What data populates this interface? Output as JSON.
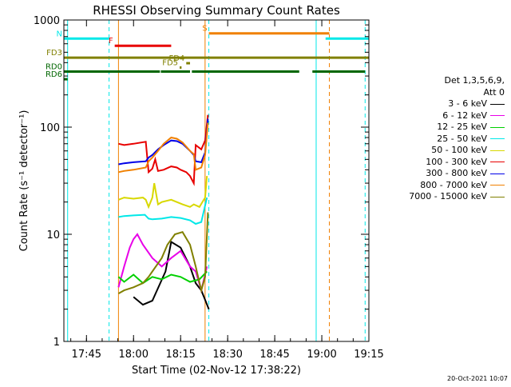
{
  "chart_data": {
    "type": "line",
    "title": "RHESSI Observing Summary Count Rates",
    "xlabel": "Start Time (02-Nov-12 17:38:22)",
    "ylabel": "Count Rate (s⁻¹ detector⁻¹)",
    "ylog": true,
    "ylim": [
      1,
      1000
    ],
    "xlim_minutes": [
      17.63,
      19.25
    ],
    "x_ticks": [
      "17:45",
      "18:00",
      "18:15",
      "18:30",
      "18:45",
      "19:00",
      "19:15"
    ],
    "y_ticks": [
      "1",
      "10",
      "100",
      "1000"
    ],
    "detector_info": [
      "Det 1,3,5,6,9,",
      "Att 0"
    ],
    "series": [
      {
        "name": "3 - 6 keV",
        "color": "#000000",
        "points": [
          [
            18.0,
            2.6
          ],
          [
            18.05,
            2.2
          ],
          [
            18.1,
            2.4
          ],
          [
            18.17,
            4.5
          ],
          [
            18.2,
            8.5
          ],
          [
            18.25,
            7.5
          ],
          [
            18.3,
            5
          ],
          [
            18.33,
            3.5
          ],
          [
            18.36,
            3
          ],
          [
            18.4,
            2
          ]
        ]
      },
      {
        "name": "6 - 12 keV",
        "color": "#e800e8",
        "points": [
          [
            17.92,
            3.2
          ],
          [
            17.95,
            5
          ],
          [
            17.98,
            7.5
          ],
          [
            18.0,
            9
          ],
          [
            18.02,
            10
          ],
          [
            18.05,
            8
          ],
          [
            18.1,
            6
          ],
          [
            18.15,
            5
          ],
          [
            18.2,
            6
          ],
          [
            18.25,
            7
          ],
          [
            18.3,
            5
          ],
          [
            18.33,
            4.5
          ],
          [
            18.36,
            3
          ],
          [
            18.39,
            5
          ]
        ]
      },
      {
        "name": "12 - 25 keV",
        "color": "#00d000",
        "points": [
          [
            17.92,
            4
          ],
          [
            17.95,
            3.6
          ],
          [
            18.0,
            4.2
          ],
          [
            18.05,
            3.5
          ],
          [
            18.1,
            4
          ],
          [
            18.15,
            3.8
          ],
          [
            18.2,
            4.2
          ],
          [
            18.25,
            4
          ],
          [
            18.3,
            3.6
          ],
          [
            18.35,
            3.8
          ],
          [
            18.39,
            4.5
          ]
        ]
      },
      {
        "name": "25 - 50 keV",
        "color": "#00e8e8",
        "points": [
          [
            17.92,
            14.5
          ],
          [
            17.95,
            14.8
          ],
          [
            18.0,
            15
          ],
          [
            18.06,
            15.2
          ],
          [
            18.08,
            14
          ],
          [
            18.1,
            13.8
          ],
          [
            18.15,
            14
          ],
          [
            18.2,
            14.5
          ],
          [
            18.25,
            14.2
          ],
          [
            18.3,
            13.5
          ],
          [
            18.33,
            12.5
          ],
          [
            18.36,
            13
          ],
          [
            18.39,
            22
          ]
        ]
      },
      {
        "name": "50 - 100 keV",
        "color": "#d8d800",
        "points": [
          [
            17.92,
            21
          ],
          [
            17.95,
            22
          ],
          [
            18.0,
            21.5
          ],
          [
            18.05,
            22
          ],
          [
            18.065,
            21
          ],
          [
            18.08,
            18
          ],
          [
            18.1,
            22
          ],
          [
            18.11,
            30
          ],
          [
            18.13,
            19
          ],
          [
            18.15,
            20
          ],
          [
            18.2,
            21
          ],
          [
            18.23,
            20
          ],
          [
            18.26,
            19
          ],
          [
            18.3,
            18
          ],
          [
            18.32,
            19
          ],
          [
            18.35,
            18
          ],
          [
            18.38,
            22
          ],
          [
            18.39,
            35
          ]
        ]
      },
      {
        "name": "100 - 300 keV",
        "color": "#e80000",
        "points": [
          [
            17.92,
            70
          ],
          [
            17.95,
            68
          ],
          [
            18.0,
            70
          ],
          [
            18.065,
            73
          ],
          [
            18.08,
            38
          ],
          [
            18.1,
            41
          ],
          [
            18.115,
            50
          ],
          [
            18.13,
            39
          ],
          [
            18.16,
            40
          ],
          [
            18.2,
            43
          ],
          [
            18.23,
            42
          ],
          [
            18.25,
            40
          ],
          [
            18.28,
            38
          ],
          [
            18.3,
            35
          ],
          [
            18.32,
            30
          ],
          [
            18.33,
            68
          ],
          [
            18.36,
            62
          ],
          [
            18.38,
            75
          ],
          [
            18.395,
            130
          ]
        ]
      },
      {
        "name": "300 - 800 keV",
        "color": "#0000e8",
        "points": [
          [
            17.92,
            45
          ],
          [
            17.95,
            46
          ],
          [
            18.0,
            47
          ],
          [
            18.065,
            48
          ],
          [
            18.08,
            52
          ],
          [
            18.1,
            55
          ],
          [
            18.13,
            62
          ],
          [
            18.16,
            68
          ],
          [
            18.2,
            75
          ],
          [
            18.23,
            74
          ],
          [
            18.26,
            70
          ],
          [
            18.3,
            60
          ],
          [
            18.32,
            55
          ],
          [
            18.33,
            48
          ],
          [
            18.36,
            47
          ],
          [
            18.38,
            58
          ],
          [
            18.395,
            120
          ]
        ]
      },
      {
        "name": "800 - 7000 keV",
        "color": "#f08000",
        "points": [
          [
            17.92,
            38
          ],
          [
            17.95,
            39
          ],
          [
            18.0,
            40
          ],
          [
            18.065,
            42
          ],
          [
            18.08,
            48
          ],
          [
            18.1,
            52
          ],
          [
            18.13,
            60
          ],
          [
            18.16,
            70
          ],
          [
            18.2,
            80
          ],
          [
            18.23,
            78
          ],
          [
            18.26,
            72
          ],
          [
            18.3,
            60
          ],
          [
            18.32,
            56
          ],
          [
            18.33,
            40
          ],
          [
            18.36,
            42
          ],
          [
            18.38,
            55
          ],
          [
            18.395,
            110
          ]
        ]
      },
      {
        "name": "7000 - 15000 keV",
        "color": "#808000",
        "points": [
          [
            17.92,
            2.8
          ],
          [
            17.95,
            3
          ],
          [
            18.0,
            3.2
          ],
          [
            18.05,
            3.5
          ],
          [
            18.08,
            4
          ],
          [
            18.1,
            4.5
          ],
          [
            18.15,
            6
          ],
          [
            18.18,
            8
          ],
          [
            18.22,
            10
          ],
          [
            18.26,
            10.5
          ],
          [
            18.3,
            8
          ],
          [
            18.33,
            5
          ],
          [
            18.36,
            3
          ],
          [
            18.38,
            4
          ],
          [
            18.395,
            16
          ]
        ]
      }
    ],
    "flags": [
      {
        "label": "N",
        "color": "#00e8e8",
        "y": 670,
        "segments": [
          [
            17.63,
            17.87
          ],
          [
            19.02,
            19.25
          ]
        ]
      },
      {
        "label": "F",
        "color": "#e80000",
        "y": 575,
        "segments": [
          [
            17.9,
            18.2
          ]
        ]
      },
      {
        "label": "FD3",
        "color": "#808000",
        "y": 445,
        "segments": [
          [
            17.63,
            19.25
          ]
        ]
      },
      {
        "label": "FD4",
        "color": "#808000",
        "y": 395,
        "segments": [
          [
            18.28,
            18.3
          ]
        ]
      },
      {
        "label": "FD5",
        "color": "#808000",
        "y": 360,
        "segments": [
          [
            18.245,
            18.255
          ]
        ]
      },
      {
        "label": "RD0",
        "color": "#006600",
        "y": 330,
        "segments": [
          [
            17.63,
            18.14
          ],
          [
            18.145,
            18.3
          ],
          [
            18.31,
            18.88
          ],
          [
            18.95,
            19.23
          ]
        ]
      },
      {
        "label": "RD6",
        "color": "#006600",
        "y": 280,
        "segments": [
          [
            17.63,
            17.65
          ]
        ]
      },
      {
        "label": "S",
        "color": "#f08000",
        "y": 750,
        "segments": [
          [
            18.4,
            19.04
          ]
        ]
      }
    ],
    "vlines": [
      {
        "x": 17.65,
        "color": "#00e8e8",
        "dashed": false
      },
      {
        "x": 17.87,
        "color": "#00e8e8",
        "dashed": true
      },
      {
        "x": 17.92,
        "color": "#f08000",
        "dashed": false
      },
      {
        "x": 18.38,
        "color": "#f08000",
        "dashed": false
      },
      {
        "x": 18.4,
        "color": "#00e8e8",
        "dashed": true
      },
      {
        "x": 18.97,
        "color": "#00e8e8",
        "dashed": false
      },
      {
        "x": 19.04,
        "color": "#f08000",
        "dashed": true
      },
      {
        "x": 19.23,
        "color": "#00e8e8",
        "dashed": true
      }
    ]
  },
  "timestamp": "20-Oct-2021 10:07"
}
